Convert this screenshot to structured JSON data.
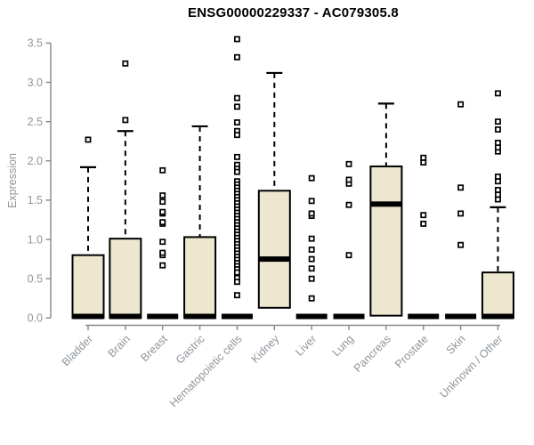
{
  "chart_data": {
    "type": "boxplot",
    "title": "ENSG00000229337 - AC079305.8",
    "xlabel": "",
    "ylabel": "Expression",
    "ylim": [
      0,
      3.5
    ],
    "grid": false,
    "y_tick_labels": [
      "0.0",
      "0.5",
      "1.0",
      "1.5",
      "2.0",
      "2.5",
      "3.0",
      "3.5"
    ],
    "categories": [
      "Bladder",
      "Brain",
      "Breast",
      "Gastric",
      "Hematopoietic cells",
      "Kidney",
      "Liver",
      "Lung",
      "Pancreas",
      "Prostate",
      "Skin",
      "Unknown / Other"
    ],
    "series": [
      {
        "name": "Bladder",
        "flat": false,
        "q1": 0,
        "median": 0.02,
        "q3": 0.8,
        "whisker_high": 1.92,
        "outliers": [
          2.27
        ]
      },
      {
        "name": "Brain",
        "flat": false,
        "q1": 0,
        "median": 0.02,
        "q3": 1.01,
        "whisker_high": 2.38,
        "outliers": [
          2.52,
          3.24
        ]
      },
      {
        "name": "Breast",
        "flat": true,
        "q1": 0,
        "median": 0.02,
        "q3": 0.02,
        "whisker_high": 0.02,
        "outliers": [
          0.67,
          0.8,
          0.83,
          0.97,
          1.2,
          1.22,
          1.33,
          1.35,
          1.48,
          1.56,
          1.88
        ]
      },
      {
        "name": "Gastric",
        "flat": false,
        "q1": 0,
        "median": 0.02,
        "q3": 1.03,
        "whisker_high": 2.44,
        "outliers": []
      },
      {
        "name": "Hematopoietic cells",
        "flat": true,
        "q1": 0,
        "median": 0.02,
        "q3": 0.02,
        "whisker_high": 0.02,
        "outliers": [
          3.55,
          3.32,
          2.8,
          2.69,
          2.49,
          2.38,
          2.33,
          2.05,
          1.95,
          1.9,
          1.86,
          1.74,
          1.7,
          1.66,
          1.62,
          1.58,
          1.54,
          1.5,
          1.46,
          1.42,
          1.38,
          1.34,
          1.3,
          1.26,
          1.22,
          1.18,
          1.14,
          1.1,
          1.06,
          1.02,
          0.98,
          0.94,
          0.9,
          0.86,
          0.82,
          0.78,
          0.74,
          0.7,
          0.66,
          0.62,
          0.58,
          0.51,
          0.46,
          0.29
        ]
      },
      {
        "name": "Kidney",
        "flat": false,
        "q1": 0.13,
        "median": 0.75,
        "q3": 1.62,
        "whisker_high": 3.12,
        "outliers": []
      },
      {
        "name": "Liver",
        "flat": true,
        "q1": 0,
        "median": 0.02,
        "q3": 0.02,
        "whisker_high": 0.02,
        "outliers": [
          0.25,
          0.5,
          0.63,
          0.75,
          0.87,
          1.01,
          1.3,
          1.33,
          1.49,
          1.78
        ]
      },
      {
        "name": "Lung",
        "flat": true,
        "q1": 0,
        "median": 0.02,
        "q3": 0.02,
        "whisker_high": 0.02,
        "outliers": [
          0.8,
          1.44,
          1.71,
          1.76,
          1.96
        ]
      },
      {
        "name": "Pancreas",
        "flat": false,
        "q1": 0.03,
        "median": 1.45,
        "q3": 1.93,
        "whisker_high": 2.73,
        "outliers": []
      },
      {
        "name": "Prostate",
        "flat": true,
        "q1": 0,
        "median": 0.02,
        "q3": 0.02,
        "whisker_high": 0.02,
        "outliers": [
          1.2,
          1.31,
          1.98,
          2.04
        ]
      },
      {
        "name": "Skin",
        "flat": true,
        "q1": 0,
        "median": 0.02,
        "q3": 0.02,
        "whisker_high": 0.02,
        "outliers": [
          0.93,
          1.33,
          1.66,
          2.72
        ]
      },
      {
        "name": "Unknown / Other",
        "flat": false,
        "q1": 0,
        "median": 0.02,
        "q3": 0.58,
        "whisker_high": 1.41,
        "outliers": [
          1.51,
          1.57,
          1.63,
          1.74,
          1.8,
          2.12,
          2.17,
          2.23,
          2.4,
          2.5,
          2.86
        ]
      }
    ]
  },
  "colors": {
    "box_fill": "#ede7d0",
    "box_border": "#000000",
    "median": "#000000",
    "outlier_border": "#000000",
    "outlier_fill": "#ffffff",
    "axis_line": "#878787",
    "tick_label": "#8f959c",
    "title_color": "#000000",
    "background": "#ffffff"
  }
}
